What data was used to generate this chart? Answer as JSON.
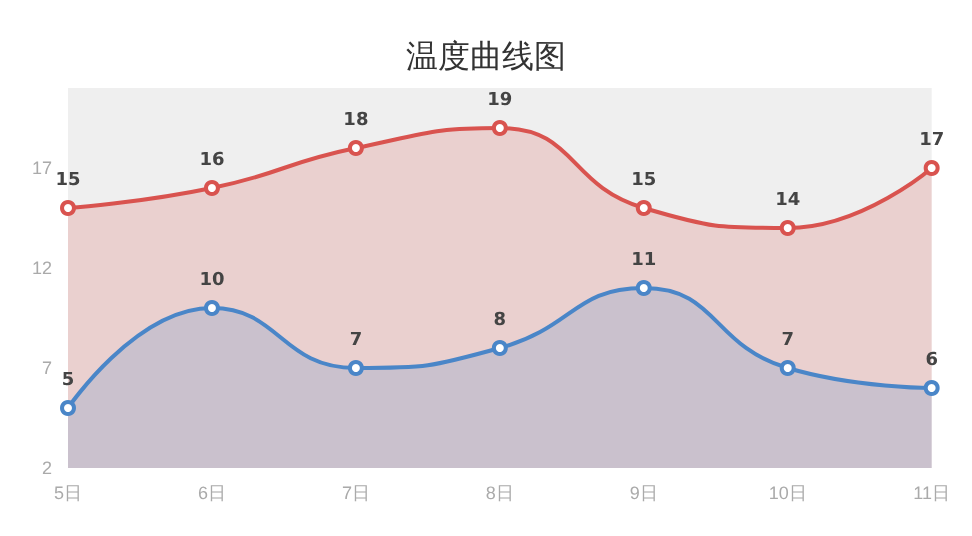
{
  "chart_data": {
    "type": "area",
    "title": "温度曲线图",
    "categories": [
      "5日",
      "6日",
      "7日",
      "8日",
      "9日",
      "10日",
      "11日"
    ],
    "series": [
      {
        "color": "#d9534f",
        "values": [
          15,
          16,
          18,
          19,
          15,
          14,
          17
        ]
      },
      {
        "color": "#4a86c8",
        "values": [
          5,
          10,
          7,
          8,
          11,
          7,
          6
        ]
      }
    ],
    "ylim": [
      2,
      21
    ],
    "yticks": [
      2,
      7,
      12,
      17
    ],
    "data_labels": true,
    "grid": false,
    "marker": "circle",
    "line_style": "solid"
  }
}
